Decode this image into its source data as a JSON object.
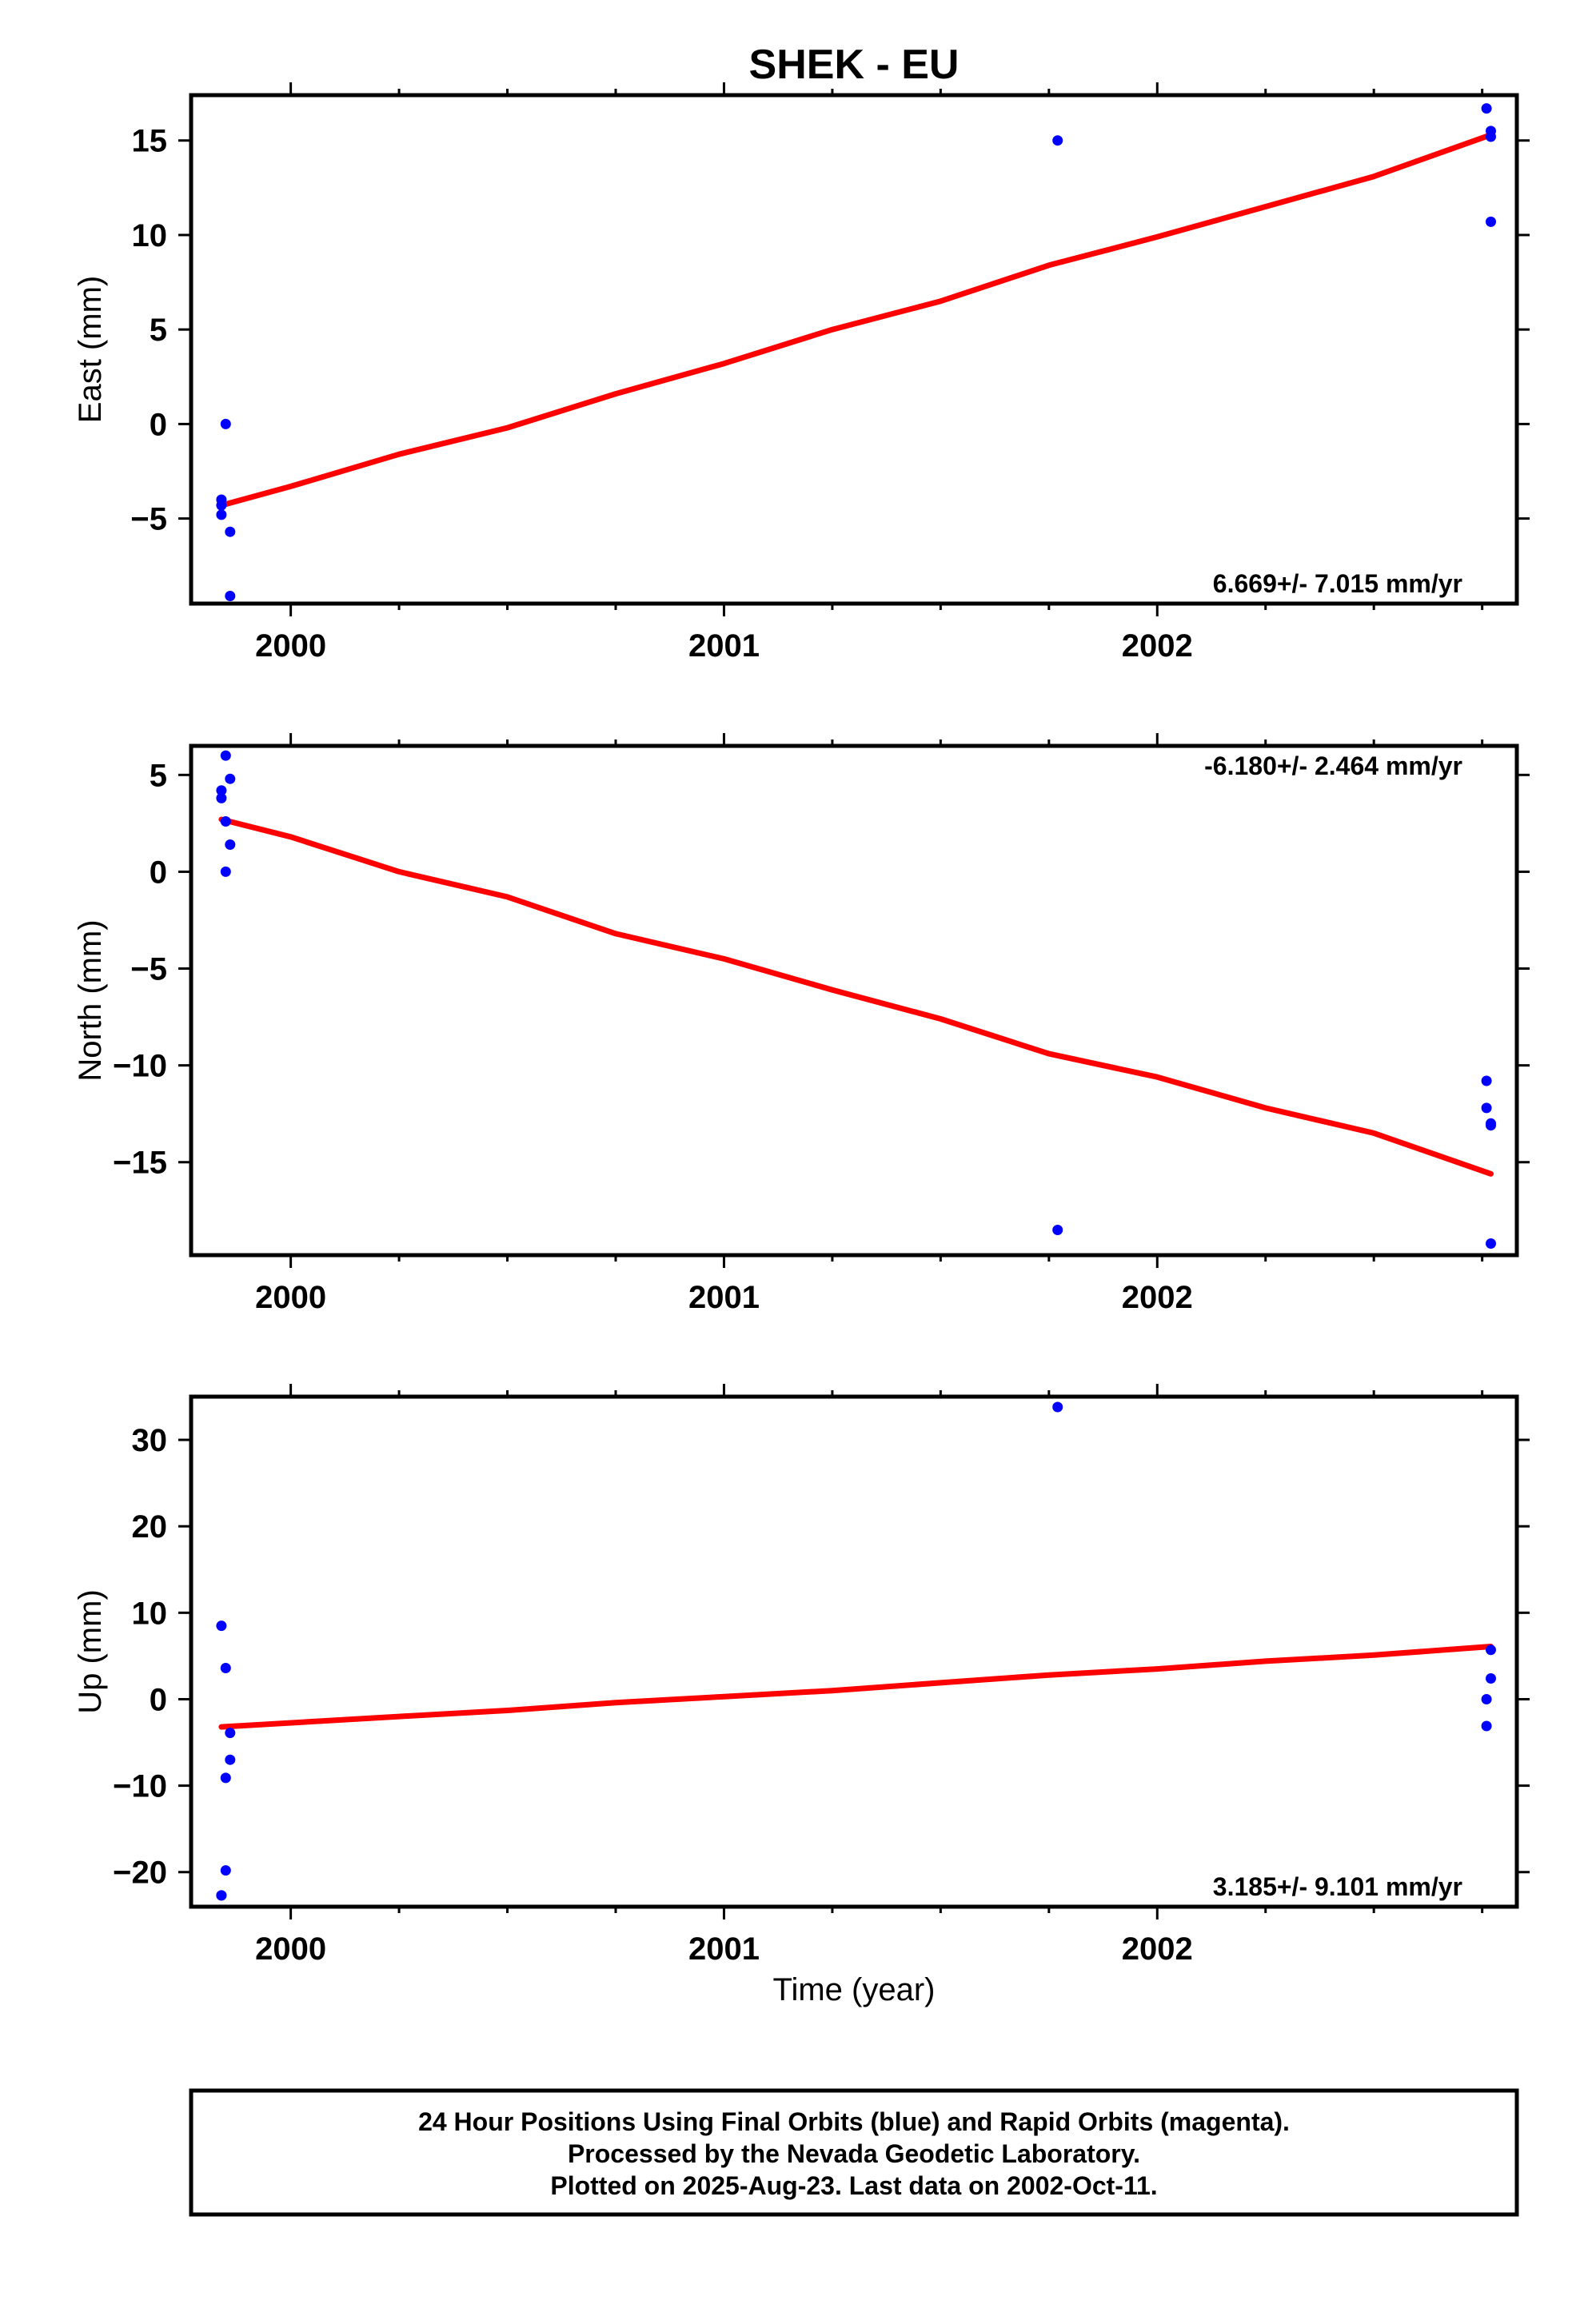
{
  "chart_data": {
    "title": "SHEK - EU",
    "type": "scatter",
    "xlabel": "Time (year)",
    "xlim": [
      1999.77,
      2002.83
    ],
    "xticks": [
      2000,
      2001,
      2002
    ],
    "xticks_minor": [
      2000.25,
      2000.5,
      2000.75,
      2001.25,
      2001.5,
      2001.75,
      2002.25,
      2002.5,
      2002.75
    ],
    "colors": {
      "points": "#0000ff",
      "fit": "#ff0000",
      "frame": "#000000"
    },
    "panels": [
      {
        "id": "east",
        "ylabel": "East (mm)",
        "ylim": [
          -9.5,
          17.4
        ],
        "yticks": [
          15,
          10,
          5,
          0,
          -5
        ],
        "ytick_labels": [
          "15",
          "10",
          "5",
          "0",
          "−5"
        ],
        "rate_label": "6.669+/- 7.015 mm/yr",
        "rate_position": "bottom-right",
        "points": {
          "x": [
            1999.84,
            1999.84,
            1999.84,
            1999.85,
            1999.86,
            1999.86,
            2001.77,
            2002.76,
            2002.77,
            2002.77,
            2002.77
          ],
          "y": [
            -4.0,
            -4.3,
            -4.8,
            0.0,
            -5.7,
            -9.1,
            15.0,
            16.7,
            15.5,
            15.2,
            10.7
          ]
        },
        "fit": {
          "x": [
            1999.84,
            2000.0,
            2000.25,
            2000.5,
            2000.75,
            2001.0,
            2001.25,
            2001.5,
            2001.75,
            2002.0,
            2002.25,
            2002.5,
            2002.77
          ],
          "y": [
            -4.3,
            -3.3,
            -1.6,
            -0.2,
            1.6,
            3.2,
            5.0,
            6.5,
            8.4,
            9.9,
            11.5,
            13.1,
            15.3
          ]
        }
      },
      {
        "id": "north",
        "ylabel": "North (mm)",
        "ylim": [
          -19.8,
          6.5
        ],
        "yticks": [
          5,
          0,
          -5,
          -10,
          -15
        ],
        "ytick_labels": [
          "5",
          "0",
          "−5",
          "−10",
          "−15"
        ],
        "rate_label": "-6.180+/- 2.464 mm/yr",
        "rate_position": "top-right",
        "points": {
          "x": [
            1999.84,
            1999.84,
            1999.85,
            1999.85,
            1999.86,
            1999.86,
            1999.85,
            2001.77,
            2002.76,
            2002.76,
            2002.77,
            2002.77,
            2002.77
          ],
          "y": [
            3.8,
            4.2,
            6.0,
            2.6,
            4.8,
            1.4,
            0.0,
            -18.5,
            -10.8,
            -12.2,
            -13.1,
            -13.0,
            -19.2
          ]
        },
        "fit": {
          "x": [
            1999.84,
            2000.0,
            2000.25,
            2000.5,
            2000.75,
            2001.0,
            2001.25,
            2001.5,
            2001.75,
            2002.0,
            2002.25,
            2002.5,
            2002.77
          ],
          "y": [
            2.7,
            1.8,
            0.0,
            -1.3,
            -3.2,
            -4.5,
            -6.1,
            -7.6,
            -9.4,
            -10.6,
            -12.2,
            -13.5,
            -15.6
          ]
        }
      },
      {
        "id": "up",
        "ylabel": "Up (mm)",
        "ylim": [
          -24.0,
          35.0
        ],
        "yticks": [
          30,
          20,
          10,
          0,
          -10,
          -20
        ],
        "ytick_labels": [
          "30",
          "20",
          "10",
          "0",
          "−10",
          "−20"
        ],
        "rate_label": "3.185+/- 9.101 mm/yr",
        "rate_position": "bottom-right",
        "points": {
          "x": [
            1999.84,
            1999.85,
            1999.86,
            1999.85,
            1999.86,
            1999.85,
            1999.84,
            1999.84,
            2001.77,
            2002.77,
            2002.77,
            2002.76,
            2002.76
          ],
          "y": [
            8.5,
            3.6,
            -3.9,
            -9.1,
            -7.0,
            -19.8,
            -22.7,
            -22.7,
            33.8,
            5.7,
            2.4,
            0.0,
            -3.1
          ]
        },
        "fit": {
          "x": [
            1999.84,
            2000.25,
            2000.5,
            2000.75,
            2001.0,
            2001.25,
            2001.5,
            2001.75,
            2002.0,
            2002.25,
            2002.5,
            2002.77
          ],
          "y": [
            -3.2,
            -2.0,
            -1.3,
            -0.4,
            0.3,
            1.0,
            1.9,
            2.8,
            3.5,
            4.4,
            5.1,
            6.1
          ]
        }
      }
    ],
    "footer_lines": [
      "24 Hour Positions Using Final Orbits (blue) and Rapid Orbits (magenta).",
      "Processed by the Nevada Geodetic Laboratory.",
      "Plotted on 2025-Aug-23. Last data on 2002-Oct-11."
    ]
  }
}
